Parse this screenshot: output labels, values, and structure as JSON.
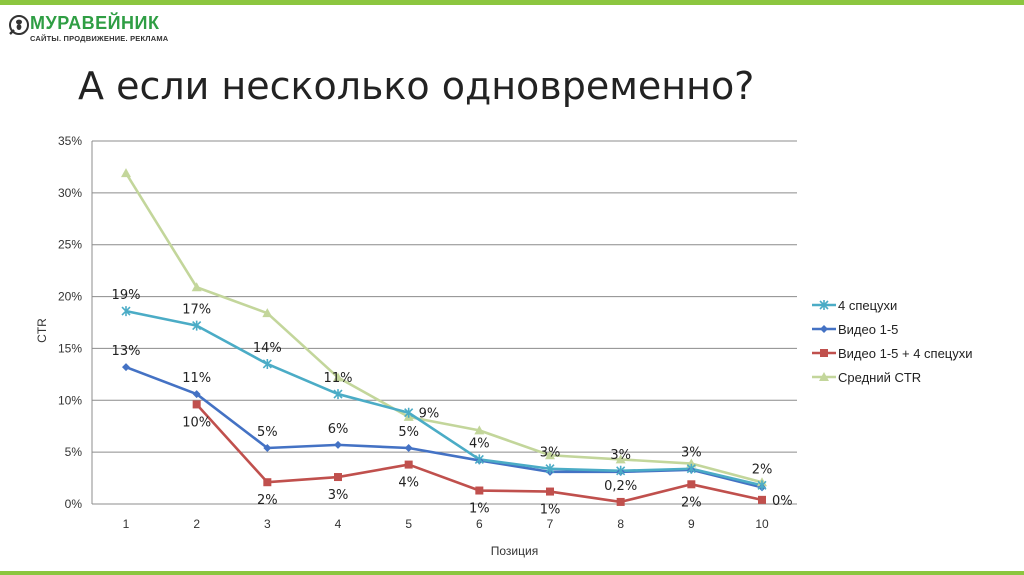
{
  "brand": {
    "name": "МУРАВЕЙНИК",
    "tagline": "САЙТЫ. ПРОДВИЖЕНИЕ. РЕКЛАМА",
    "accent_color": "#8cc63f",
    "name_color": "#2f9e44"
  },
  "slide": {
    "title": "А если несколько одновременно?"
  },
  "chart_data": {
    "type": "line",
    "xlabel": "Позиция",
    "ylabel": "CTR",
    "categories": [
      "1",
      "2",
      "3",
      "4",
      "5",
      "6",
      "7",
      "8",
      "9",
      "10"
    ],
    "ylim": [
      0,
      35
    ],
    "yticks": [
      "0%",
      "5%",
      "10%",
      "15%",
      "20%",
      "25%",
      "30%",
      "35%"
    ],
    "grid": true,
    "legend_position": "right",
    "series": [
      {
        "name": "4 спецухи",
        "color": "#4bacc6",
        "marker": "star",
        "values": [
          18.6,
          17.2,
          13.5,
          10.6,
          8.8,
          4.3,
          3.4,
          3.2,
          3.4,
          1.8
        ],
        "labels": [
          "19%",
          "17%",
          "14%",
          "11%",
          "9%",
          "4%",
          "3%",
          "3%",
          "3%",
          "2%"
        ],
        "label_pos": [
          "above",
          "above",
          "above",
          "above",
          "right",
          "above",
          "above",
          "above",
          "above",
          "above"
        ]
      },
      {
        "name": "Видео 1-5",
        "color": "#4472c4",
        "marker": "diamond",
        "values": [
          13.2,
          10.6,
          5.4,
          5.7,
          5.4,
          4.2,
          3.1,
          3.1,
          3.3,
          1.6
        ],
        "labels": [
          "13%",
          "11%",
          "5%",
          "6%",
          "5%",
          "",
          "",
          "",
          "",
          ""
        ],
        "label_pos": [
          "above",
          "above",
          "above",
          "above",
          "above",
          "",
          "",
          "",
          "",
          ""
        ]
      },
      {
        "name": "Видео 1-5 + 4 спецухи",
        "color": "#c0504d",
        "marker": "square",
        "values": [
          null,
          9.6,
          2.1,
          2.6,
          3.8,
          1.3,
          1.2,
          0.2,
          1.9,
          0.4
        ],
        "labels": [
          "",
          "10%",
          "2%",
          "3%",
          "4%",
          "1%",
          "1%",
          "0,2%",
          "2%",
          "0%"
        ],
        "label_pos": [
          "",
          "below",
          "below",
          "below",
          "below",
          "below",
          "below",
          "above",
          "below",
          "right"
        ]
      },
      {
        "name": "Средний CTR",
        "color": "#c3d69b",
        "marker": "triangle",
        "values": [
          31.9,
          20.9,
          18.4,
          12.2,
          8.4,
          7.1,
          4.7,
          4.3,
          3.9,
          2.1
        ],
        "labels": [
          "",
          "",
          "",
          "",
          "",
          "",
          "",
          "",
          "",
          ""
        ],
        "label_pos": [
          "",
          "",
          "",
          "",
          "",
          "",
          "",
          "",
          "",
          ""
        ]
      }
    ]
  }
}
